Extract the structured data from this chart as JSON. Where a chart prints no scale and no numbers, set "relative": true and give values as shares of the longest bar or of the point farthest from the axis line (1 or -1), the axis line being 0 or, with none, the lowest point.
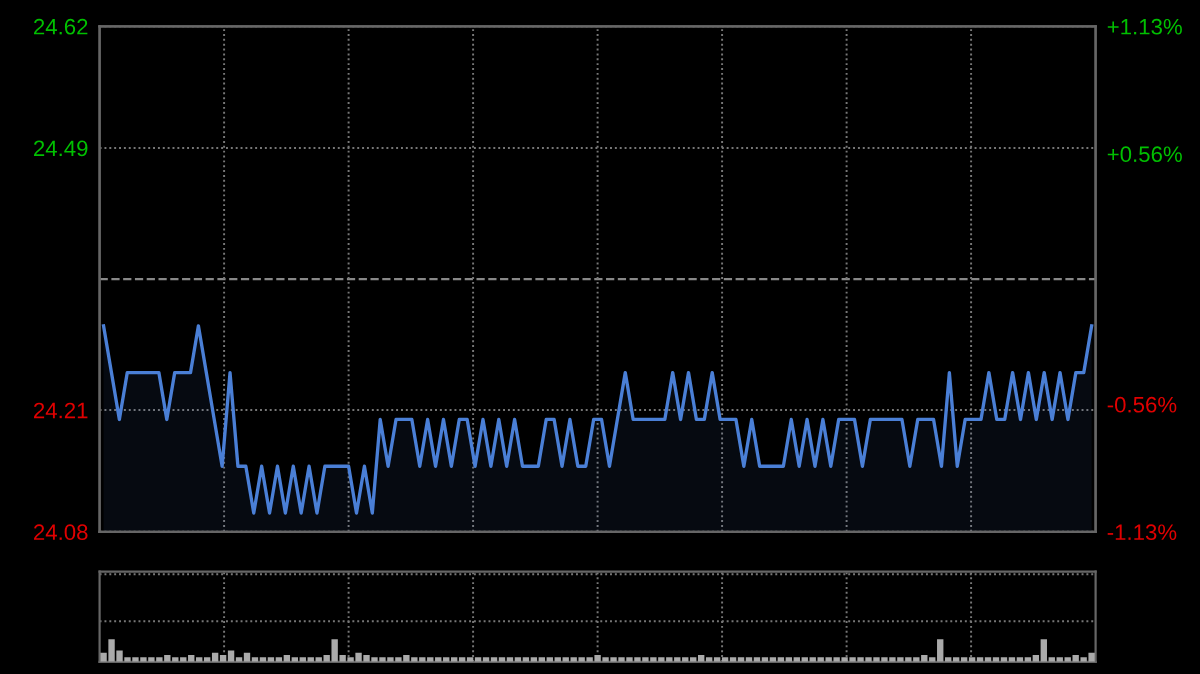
{
  "chart_data": [
    {
      "type": "area",
      "categories": [
        null,
        null,
        null,
        null,
        null,
        null,
        null,
        null,
        null,
        null,
        null,
        null,
        null,
        null,
        null,
        null,
        null,
        null,
        null,
        null,
        null,
        null,
        null,
        null,
        null,
        null,
        null,
        null,
        null,
        null,
        null,
        null,
        null,
        null,
        null,
        null,
        null,
        null,
        null,
        null,
        null,
        null,
        null,
        null,
        null,
        null,
        null,
        null,
        null,
        null,
        null,
        null,
        null,
        null,
        null,
        null,
        null,
        null,
        null,
        null,
        null,
        null,
        null,
        null,
        null,
        null,
        null,
        null,
        null,
        null,
        null,
        null,
        null,
        null,
        null,
        null,
        null,
        null,
        null,
        null,
        null,
        null,
        null,
        null,
        null,
        null,
        null,
        null,
        null,
        null,
        null,
        null,
        null,
        null,
        null,
        null,
        null,
        null,
        null,
        null,
        null,
        null,
        null,
        null,
        null,
        null,
        null,
        null,
        null,
        null,
        null,
        null,
        null,
        null,
        null,
        null,
        null,
        null,
        null,
        null,
        null,
        null,
        null,
        null,
        null,
        null
      ],
      "series": [
        {
          "color": "#4a7fd6",
          "values": [
            24.3,
            24.25,
            24.2,
            24.25,
            24.25,
            24.25,
            24.25,
            24.25,
            24.2,
            24.25,
            24.25,
            24.25,
            24.3,
            24.25,
            24.2,
            24.15,
            24.25,
            24.15,
            24.15,
            24.1,
            24.15,
            24.1,
            24.15,
            24.1,
            24.15,
            24.1,
            24.15,
            24.1,
            24.15,
            24.15,
            24.15,
            24.15,
            24.1,
            24.15,
            24.1,
            24.2,
            24.15,
            24.2,
            24.2,
            24.2,
            24.15,
            24.2,
            24.15,
            24.2,
            24.15,
            24.2,
            24.2,
            24.15,
            24.2,
            24.15,
            24.2,
            24.15,
            24.2,
            24.15,
            24.15,
            24.15,
            24.2,
            24.2,
            24.15,
            24.2,
            24.15,
            24.15,
            24.2,
            24.2,
            24.15,
            24.2,
            24.25,
            24.2,
            24.2,
            24.2,
            24.2,
            24.2,
            24.25,
            24.2,
            24.25,
            24.2,
            24.2,
            24.25,
            24.2,
            24.2,
            24.2,
            24.15,
            24.2,
            24.15,
            24.15,
            24.15,
            24.15,
            24.2,
            24.15,
            24.2,
            24.15,
            24.2,
            24.15,
            24.2,
            24.2,
            24.2,
            24.15,
            24.2,
            24.2,
            24.2,
            24.2,
            24.2,
            24.15,
            24.2,
            24.2,
            24.2,
            24.15,
            24.25,
            24.15,
            24.2,
            24.2,
            24.2,
            24.25,
            24.2,
            24.2,
            24.25,
            24.2,
            24.25,
            24.2,
            24.25,
            24.2,
            24.25,
            24.2,
            24.25,
            24.25,
            24.3
          ]
        }
      ],
      "ylim": [
        24.08,
        24.62
      ],
      "yticks": [
        24.08,
        24.21,
        24.49,
        24.62
      ],
      "y2lim": [
        -1.13,
        1.13
      ],
      "y2ticks": [
        {
          "value": -1.13,
          "label": "-1.13%"
        },
        {
          "value": -0.56,
          "label": "-0.56%"
        },
        {
          "value": 0.56,
          "label": "+0.56%"
        },
        {
          "value": 1.13,
          "label": "+1.13%"
        }
      ],
      "ref_lines": [
        {
          "axis": "y",
          "value": 24.35,
          "line_style": "dashed",
          "color": "#888888"
        }
      ],
      "grid": true,
      "legend": false
    },
    {
      "type": "bar",
      "relative": true,
      "grid": true,
      "categories": [
        null,
        null,
        null,
        null,
        null,
        null,
        null,
        null,
        null,
        null,
        null,
        null,
        null,
        null,
        null,
        null,
        null,
        null,
        null,
        null,
        null,
        null,
        null,
        null,
        null,
        null,
        null,
        null,
        null,
        null,
        null,
        null,
        null,
        null,
        null,
        null,
        null,
        null,
        null,
        null,
        null,
        null,
        null,
        null,
        null,
        null,
        null,
        null,
        null,
        null,
        null,
        null,
        null,
        null,
        null,
        null,
        null,
        null,
        null,
        null,
        null,
        null,
        null,
        null,
        null,
        null,
        null,
        null,
        null,
        null,
        null,
        null,
        null,
        null,
        null,
        null,
        null,
        null,
        null,
        null,
        null,
        null,
        null,
        null,
        null,
        null,
        null,
        null,
        null,
        null,
        null,
        null,
        null,
        null,
        null,
        null,
        null,
        null,
        null,
        null,
        null,
        null,
        null,
        null,
        null,
        null,
        null,
        null,
        null,
        null,
        null,
        null,
        null,
        null,
        null,
        null,
        null,
        null,
        null,
        null,
        null,
        null,
        null,
        null,
        null
      ],
      "series": [
        {
          "color": "#aaaaaa",
          "values": [
            0.4,
            1,
            0.5,
            0.2,
            0.2,
            0.2,
            0.2,
            0.2,
            0.3,
            0.2,
            0.2,
            0.3,
            0.2,
            0.2,
            0.4,
            0.3,
            0.5,
            0.2,
            0.4,
            0.2,
            0.2,
            0.2,
            0.2,
            0.3,
            0.2,
            0.2,
            0.2,
            0.2,
            0.3,
            1,
            0.3,
            0.2,
            0.4,
            0.3,
            0.2,
            0.2,
            0.2,
            0.2,
            0.3,
            0.2,
            0.2,
            0.2,
            0.2,
            0.2,
            0.2,
            0.2,
            0.2,
            0.2,
            0.2,
            0.2,
            0.2,
            0.2,
            0.2,
            0.2,
            0.2,
            0.2,
            0.2,
            0.2,
            0.2,
            0.2,
            0.2,
            0.2,
            0.3,
            0.2,
            0.2,
            0.2,
            0.2,
            0.2,
            0.2,
            0.2,
            0.2,
            0.2,
            0.2,
            0.2,
            0.2,
            0.3,
            0.2,
            0.2,
            0.2,
            0.2,
            0.2,
            0.2,
            0.2,
            0.2,
            0.2,
            0.2,
            0.2,
            0.2,
            0.2,
            0.2,
            0.2,
            0.2,
            0.2,
            0.2,
            0.2,
            0.2,
            0.2,
            0.2,
            0.2,
            0.2,
            0.2,
            0.2,
            0.2,
            0.3,
            0.2,
            1,
            0.2,
            0.2,
            0.2,
            0.2,
            0.2,
            0.2,
            0.2,
            0.2,
            0.2,
            0.2,
            0.2,
            0.3,
            1,
            0.2,
            0.2,
            0.2,
            0.3,
            0.2,
            0.4
          ]
        }
      ]
    }
  ]
}
